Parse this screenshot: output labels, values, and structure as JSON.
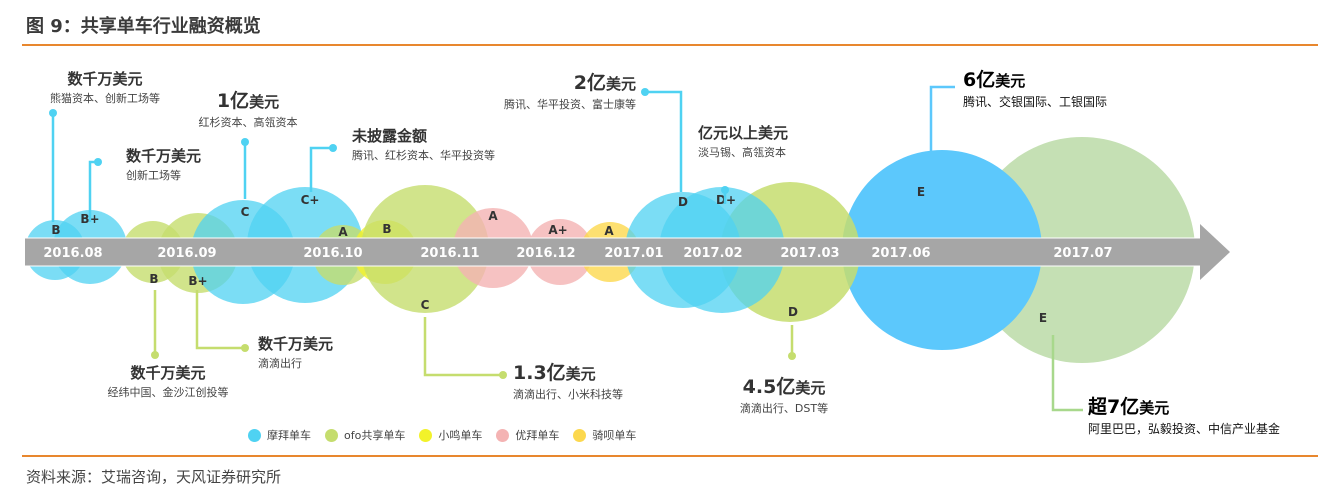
{
  "title": "图 9：共享单车行业融资概览",
  "source": "资料来源：艾瑞咨询，天风证券研究所",
  "colors": {
    "accent": "#e8872e",
    "timeline": "#a6a6a6",
    "mobike": "#4fd2f2",
    "ofo": "#c5dd6e",
    "xiaoming": "#f2f22a",
    "youbai": "#f4b3b3",
    "qibei": "#fcd84e",
    "mobike_e": "#5cc8fc",
    "ofo_e": "#c5e0b4"
  },
  "timeline": [
    "2016.08",
    "2016.09",
    "2016.10",
    "2016.11",
    "2016.12",
    "2017.01",
    "2017.02",
    "2017.03",
    "2017.06",
    "2017.07"
  ],
  "rounds": [
    {
      "brand": "mobike",
      "round": "B"
    },
    {
      "brand": "mobike",
      "round": "B+"
    },
    {
      "brand": "ofo",
      "round": "B"
    },
    {
      "brand": "ofo",
      "round": "B+"
    },
    {
      "brand": "mobike",
      "round": "C"
    },
    {
      "brand": "mobike",
      "round": "C+"
    },
    {
      "brand": "ofo",
      "round": "A"
    },
    {
      "brand": "xiaoming",
      "round": "B"
    },
    {
      "brand": "ofo",
      "round": "C"
    },
    {
      "brand": "youbai",
      "round": "A"
    },
    {
      "brand": "youbai",
      "round": "A+"
    },
    {
      "brand": "qibei",
      "round": "A"
    },
    {
      "brand": "mobike",
      "round": "D"
    },
    {
      "brand": "mobike",
      "round": "D+"
    },
    {
      "brand": "ofo",
      "round": "D"
    },
    {
      "brand": "mobike_e",
      "round": "E"
    },
    {
      "brand": "ofo_e",
      "round": "E"
    }
  ],
  "callouts": [
    {
      "amount": "数千万美元",
      "investors": "熊猫资本、创新工场等"
    },
    {
      "amount": "数千万美元",
      "investors": "创新工场等"
    },
    {
      "amount": "1亿",
      "unit": "美元",
      "investors": "红杉资本、高瓴资本"
    },
    {
      "amount": "未披露金额",
      "investors": "腾讯、红杉资本、华平投资等"
    },
    {
      "amount": "2亿",
      "unit": "美元",
      "investors": "腾讯、华平投资、富士康等"
    },
    {
      "amount": "亿元以上美元",
      "investors": "淡马锡、高瓴资本"
    },
    {
      "amount": "6亿",
      "unit": "美元",
      "investors": "腾讯、交银国际、工银国际"
    },
    {
      "amount": "数千万美元",
      "investors": "经纬中国、金沙江创投等"
    },
    {
      "amount": "数千万美元",
      "investors": "滴滴出行"
    },
    {
      "amount": "1.3亿",
      "unit": "美元",
      "investors": "滴滴出行、小米科技等"
    },
    {
      "amount": "4.5亿",
      "unit": "美元",
      "investors": "滴滴出行、DST等"
    },
    {
      "amount": "超7亿",
      "unit": "美元",
      "investors": "阿里巴巴，弘毅投资、中信产业基金"
    }
  ],
  "legend": [
    {
      "label": "摩拜单车",
      "color": "#4fd2f2"
    },
    {
      "label": "ofo共享单车",
      "color": "#c5dd6e"
    },
    {
      "label": "小鸣单车",
      "color": "#f2f22a"
    },
    {
      "label": "优拜单车",
      "color": "#f4b3b3"
    },
    {
      "label": "骑呗单车",
      "color": "#fcd84e"
    }
  ]
}
